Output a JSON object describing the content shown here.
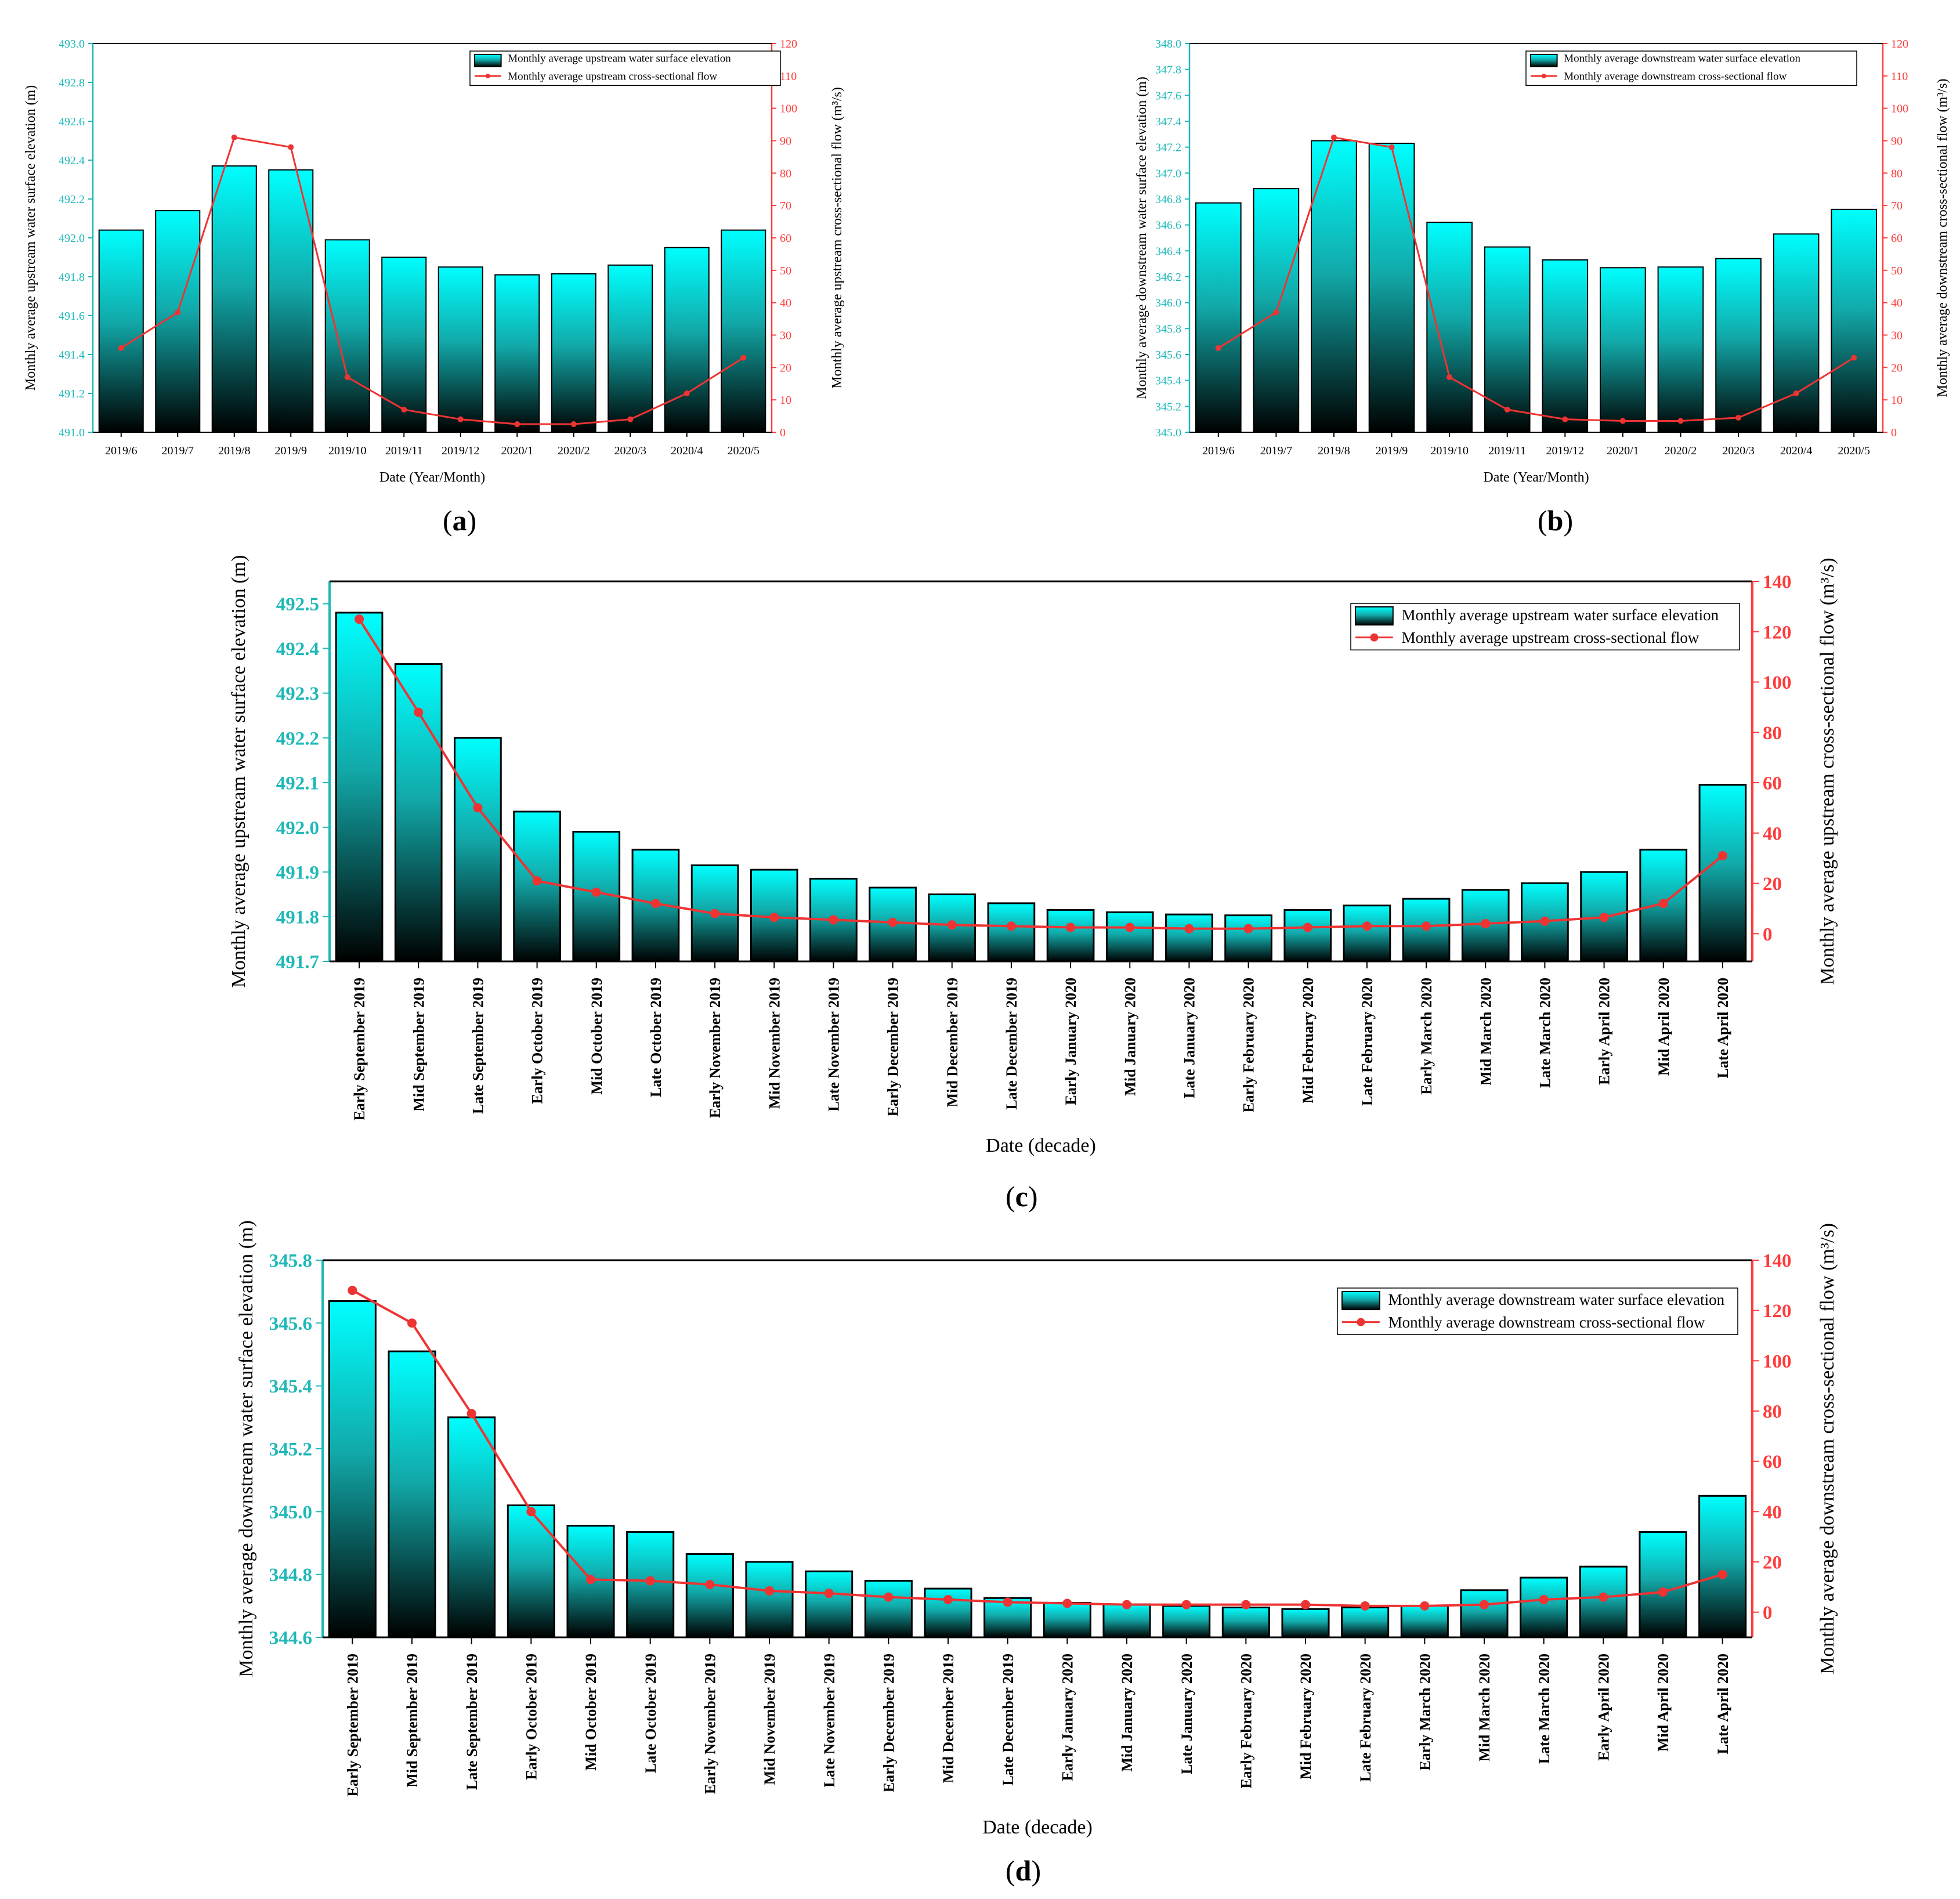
{
  "colors": {
    "bar_top": "#00ffff",
    "bar_bottom": "#000000",
    "left_axis": "#1fb8b8",
    "right_axis": "#ff3b3b",
    "line": "#ee3333",
    "bar_stroke": "#000000"
  },
  "panel_labels": [
    "(a)",
    "(b)",
    "(c)",
    "(d)"
  ],
  "chart_data": [
    {
      "id": "a",
      "type": "bar+line",
      "xlabel": "Date (Year/Month)",
      "ylabel_left": "Monthly average upstream water surface elevation (m)",
      "ylabel_right": "Monthly average upstream cross-sectional flow (m³/s)",
      "ylim_left": [
        491.0,
        493.0
      ],
      "yticks_left": [
        "491.0",
        "491.2",
        "491.4",
        "491.6",
        "491.8",
        "492.0",
        "492.2",
        "492.4",
        "492.6",
        "492.8",
        "493.0"
      ],
      "ylim_right": [
        0,
        120
      ],
      "yticks_right": [
        "0",
        "10",
        "20",
        "30",
        "40",
        "50",
        "60",
        "70",
        "80",
        "90",
        "100",
        "110",
        "120"
      ],
      "categories": [
        "2019/6",
        "2019/7",
        "2019/8",
        "2019/9",
        "2019/10",
        "2019/11",
        "2019/12",
        "2020/1",
        "2020/2",
        "2020/3",
        "2020/4",
        "2020/5"
      ],
      "series": [
        {
          "name": "Monthly average upstream water surface elevation",
          "kind": "bar",
          "axis": "left",
          "values": [
            492.04,
            492.14,
            492.37,
            492.35,
            491.99,
            491.9,
            491.85,
            491.81,
            491.815,
            491.86,
            491.95,
            492.04
          ]
        },
        {
          "name": "Monthly average upstream cross-sectional flow",
          "kind": "line",
          "axis": "right",
          "values": [
            26,
            37,
            91,
            88,
            17,
            7,
            4,
            2.5,
            2.5,
            4,
            12,
            23
          ]
        }
      ],
      "legend": "top-right"
    },
    {
      "id": "b",
      "type": "bar+line",
      "xlabel": "Date (Year/Month)",
      "ylabel_left": "Monthly average downstream water surface elevation (m)",
      "ylabel_right": "Monthly average downstream cross-sectional flow (m³/s)",
      "ylim_left": [
        345.0,
        348.0
      ],
      "yticks_left": [
        "345.0",
        "345.2",
        "345.4",
        "345.6",
        "345.8",
        "346.0",
        "346.2",
        "346.4",
        "346.6",
        "346.8",
        "347.0",
        "347.2",
        "347.4",
        "347.6",
        "347.8",
        "348.0"
      ],
      "ylim_right": [
        0,
        120
      ],
      "yticks_right": [
        "0",
        "10",
        "20",
        "30",
        "40",
        "50",
        "60",
        "70",
        "80",
        "90",
        "100",
        "110",
        "120"
      ],
      "categories": [
        "2019/6",
        "2019/7",
        "2019/8",
        "2019/9",
        "2019/10",
        "2019/11",
        "2019/12",
        "2020/1",
        "2020/2",
        "2020/3",
        "2020/4",
        "2020/5"
      ],
      "series": [
        {
          "name": "Monthly average downstream water surface elevation",
          "kind": "bar",
          "axis": "left",
          "values": [
            346.77,
            346.88,
            347.25,
            347.23,
            346.62,
            346.43,
            346.33,
            346.27,
            346.275,
            346.34,
            346.53,
            346.72
          ]
        },
        {
          "name": "Monthly average downstream cross-sectional flow",
          "kind": "line",
          "axis": "right",
          "values": [
            26,
            37,
            91,
            88,
            17,
            7,
            4,
            3.5,
            3.5,
            4.5,
            12,
            23
          ]
        }
      ],
      "legend": "top-right"
    },
    {
      "id": "c",
      "type": "bar+line",
      "xlabel": "Date (decade)",
      "ylabel_left": "Monthly average upstream water surface elevation (m)",
      "ylabel_right": "Monthly average upstream cross-sectional flow (m³/s)",
      "ylim_left": [
        491.7,
        492.55
      ],
      "yticks_left": [
        "491.7",
        "491.8",
        "491.9",
        "492.0",
        "492.1",
        "492.2",
        "492.3",
        "492.4",
        "492.5"
      ],
      "ylim_right": [
        -11,
        140
      ],
      "yticks_right": [
        "0",
        "20",
        "40",
        "60",
        "80",
        "100",
        "120",
        "140"
      ],
      "categories": [
        "Early September 2019",
        "Mid September 2019",
        "Late September 2019",
        "Early October 2019",
        "Mid October 2019",
        "Late October 2019",
        "Early November 2019",
        "Mid November 2019",
        "Late November 2019",
        "Early December 2019",
        "Mid December 2019",
        "Late December 2019",
        "Early January 2020",
        "Mid January 2020",
        "Late January 2020",
        "Early February 2020",
        "Mid February 2020",
        "Late February 2020",
        "Early March 2020",
        "Mid March 2020",
        "Late March 2020",
        "Early April 2020",
        "Mid April 2020",
        "Late April 2020"
      ],
      "series": [
        {
          "name": "Monthly average upstream water surface elevation",
          "kind": "bar",
          "axis": "left",
          "values": [
            492.48,
            492.365,
            492.2,
            492.035,
            491.99,
            491.95,
            491.915,
            491.905,
            491.885,
            491.865,
            491.85,
            491.83,
            491.815,
            491.81,
            491.805,
            491.803,
            491.815,
            491.825,
            491.84,
            491.86,
            491.875,
            491.9,
            491.95,
            492.095
          ]
        },
        {
          "name": "Monthly average upstream cross-sectional flow",
          "kind": "line",
          "axis": "right",
          "values": [
            125,
            88,
            50,
            21,
            16.5,
            12,
            8,
            6.5,
            5.5,
            4.5,
            3.5,
            3,
            2.5,
            2.5,
            2,
            2,
            2.5,
            3,
            3,
            4,
            5,
            6.5,
            12,
            31
          ]
        }
      ],
      "legend": "top-right"
    },
    {
      "id": "d",
      "type": "bar+line",
      "xlabel": "Date (decade)",
      "ylabel_left": "Monthly average downstream water surface elevation (m)",
      "ylabel_right": "Monthly average downstream cross-sectional flow (m³/s)",
      "ylim_left": [
        344.6,
        345.8
      ],
      "yticks_left": [
        "344.6",
        "344.8",
        "345.0",
        "345.2",
        "345.4",
        "345.6",
        "345.8"
      ],
      "ylim_right": [
        -10,
        140
      ],
      "yticks_right": [
        "0",
        "20",
        "40",
        "60",
        "80",
        "100",
        "120",
        "140"
      ],
      "categories": [
        "Early September 2019",
        "Mid September 2019",
        "Late September 2019",
        "Early October 2019",
        "Mid October 2019",
        "Late October 2019",
        "Early November 2019",
        "Mid November 2019",
        "Late November 2019",
        "Early December 2019",
        "Mid December 2019",
        "Late December 2019",
        "Early January 2020",
        "Mid January 2020",
        "Late January 2020",
        "Early February 2020",
        "Mid February 2020",
        "Late February 2020",
        "Early March 2020",
        "Mid March 2020",
        "Late March 2020",
        "Early April 2020",
        "Mid April 2020",
        "Late April 2020"
      ],
      "series": [
        {
          "name": "Monthly average downstream water surface elevation",
          "kind": "bar",
          "axis": "left",
          "values": [
            345.67,
            345.51,
            345.3,
            345.02,
            344.955,
            344.935,
            344.865,
            344.84,
            344.81,
            344.78,
            344.755,
            344.725,
            344.71,
            344.705,
            344.7,
            344.695,
            344.69,
            344.695,
            344.7,
            344.75,
            344.79,
            344.825,
            344.935,
            345.05
          ]
        },
        {
          "name": "Monthly average downstream cross-sectional flow",
          "kind": "line",
          "axis": "right",
          "values": [
            128,
            115,
            79,
            40,
            13,
            12.5,
            11,
            8.5,
            7.5,
            6,
            5,
            4,
            3.5,
            3,
            3,
            3,
            3,
            2.5,
            2.5,
            3,
            5,
            6,
            8,
            15
          ]
        }
      ],
      "legend": "top-right"
    }
  ]
}
